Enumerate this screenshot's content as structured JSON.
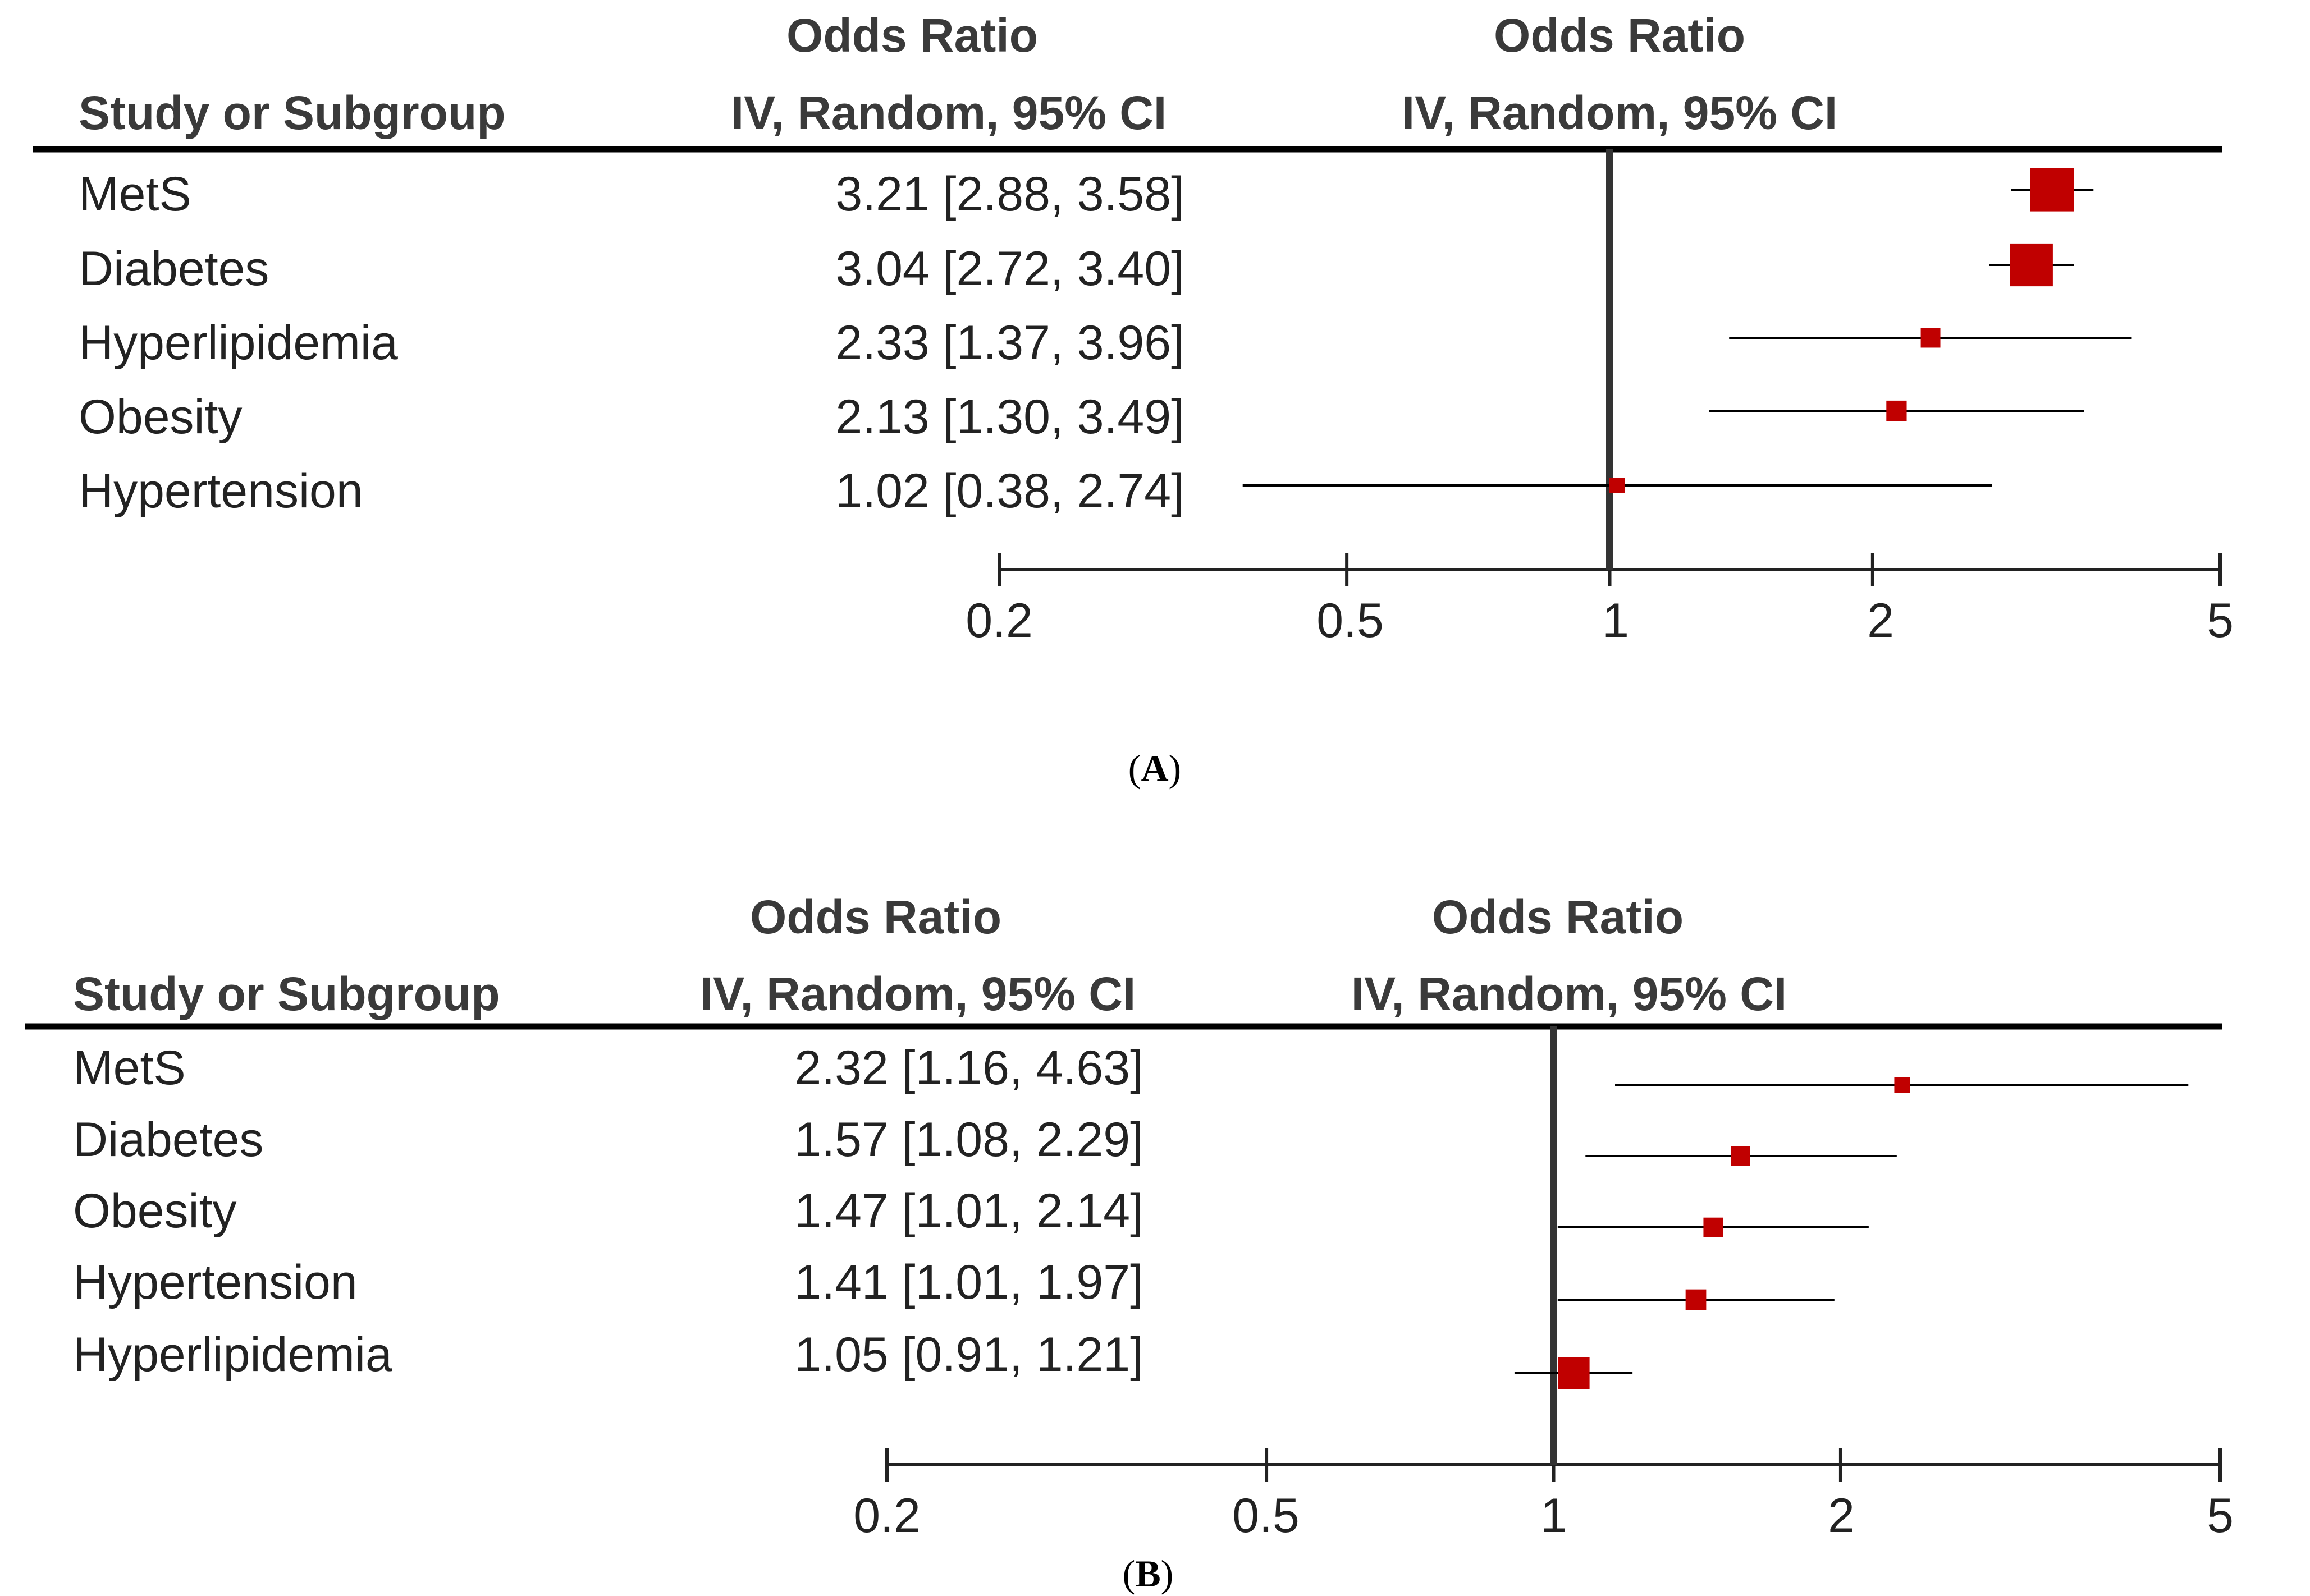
{
  "colors": {
    "marker": "#c00000",
    "text": "#222222",
    "line": "#000000",
    "axis": "#222222"
  },
  "panels": [
    {
      "caption_letter": "A",
      "header": {
        "study": "Study or Subgroup",
        "or_title": "Odds Ratio",
        "or_sub": "IV, Random, 95% CI",
        "plot_title": "Odds Ratio",
        "plot_sub": "IV, Random, 95% CI"
      },
      "rows": [
        {
          "label": "MetS",
          "ci_text": "3.21 [2.88, 3.58]"
        },
        {
          "label": "Diabetes",
          "ci_text": "3.04 [2.72, 3.40]"
        },
        {
          "label": "Hyperlipidemia",
          "ci_text": "2.33 [1.37, 3.96]"
        },
        {
          "label": "Obesity",
          "ci_text": "2.13 [1.30, 3.49]"
        },
        {
          "label": "Hypertension",
          "ci_text": "1.02 [0.38, 2.74]"
        }
      ],
      "axis_ticks": [
        "0.2",
        "0.5",
        "1",
        "2",
        "5"
      ]
    },
    {
      "caption_letter": "B",
      "header": {
        "study": "Study or Subgroup",
        "or_title": "Odds Ratio",
        "or_sub": "IV, Random, 95% CI",
        "plot_title": "Odds Ratio",
        "plot_sub": "IV, Random, 95% CI"
      },
      "rows": [
        {
          "label": "MetS",
          "ci_text": "2.32 [1.16, 4.63]"
        },
        {
          "label": "Diabetes",
          "ci_text": "1.57 [1.08, 2.29]"
        },
        {
          "label": "Obesity",
          "ci_text": "1.47 [1.01, 2.14]"
        },
        {
          "label": "Hypertension",
          "ci_text": "1.41 [1.01, 1.97]"
        },
        {
          "label": "Hyperlipidemia",
          "ci_text": "1.05 [0.91, 1.21]"
        }
      ],
      "axis_ticks": [
        "0.2",
        "0.5",
        "1",
        "2",
        "5"
      ]
    }
  ],
  "chart_data": [
    {
      "type": "forest",
      "title": "Odds Ratio",
      "xlabel": "",
      "x_scale": "log",
      "xlim": [
        0.2,
        5
      ],
      "reference_line": 1,
      "categories": [
        "MetS",
        "Diabetes",
        "Hyperlipidemia",
        "Obesity",
        "Hypertension"
      ],
      "series": [
        {
          "name": "IV, Random, 95% CI",
          "or": [
            3.21,
            3.04,
            2.33,
            2.13,
            1.02
          ],
          "ci_low": [
            2.88,
            2.72,
            1.37,
            1.3,
            0.38
          ],
          "ci_high": [
            3.58,
            3.4,
            3.96,
            3.49,
            2.74
          ]
        }
      ]
    },
    {
      "type": "forest",
      "title": "Odds Ratio",
      "xlabel": "",
      "x_scale": "log",
      "xlim": [
        0.2,
        5
      ],
      "reference_line": 1,
      "categories": [
        "MetS",
        "Diabetes",
        "Obesity",
        "Hypertension",
        "Hyperlipidemia"
      ],
      "series": [
        {
          "name": "IV, Random, 95% CI",
          "or": [
            2.32,
            1.57,
            1.47,
            1.41,
            1.05
          ],
          "ci_low": [
            1.16,
            1.08,
            1.01,
            1.01,
            0.91
          ],
          "ci_high": [
            4.63,
            2.29,
            2.14,
            1.97,
            1.21
          ]
        }
      ]
    }
  ]
}
